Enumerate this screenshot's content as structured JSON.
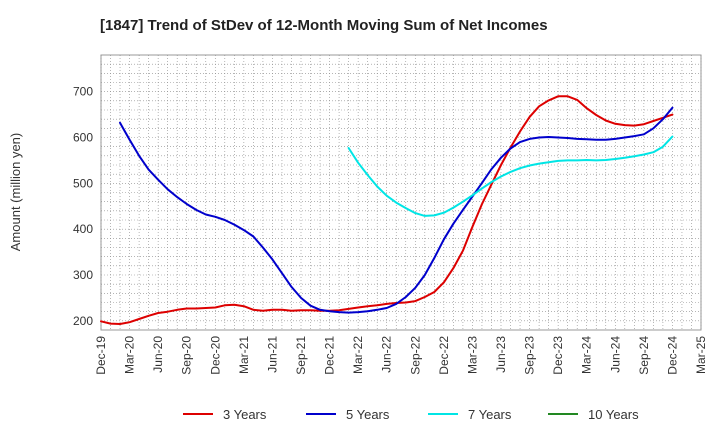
{
  "chart_data": {
    "type": "line",
    "title": "[1847]  Trend of StDev of 12-Month Moving Sum of Net Incomes",
    "xlabel": "",
    "ylabel": "Amount (million yen)",
    "x_ticks": [
      "Dec-19",
      "Mar-20",
      "Jun-20",
      "Sep-20",
      "Dec-20",
      "Mar-21",
      "Jun-21",
      "Sep-21",
      "Dec-21",
      "Mar-22",
      "Jun-22",
      "Sep-22",
      "Dec-22",
      "Mar-23",
      "Jun-23",
      "Sep-23",
      "Dec-23",
      "Mar-24",
      "Jun-24",
      "Sep-24",
      "Dec-24",
      "Mar-25"
    ],
    "y_ticks": [
      200,
      300,
      400,
      500,
      600,
      700
    ],
    "ylim": [
      180,
      780
    ],
    "xlim": [
      "2019-12",
      "2025-03"
    ],
    "grid": true,
    "legend_position": "bottom",
    "series": [
      {
        "name": "3 Years",
        "color": "#dd0000",
        "x": [
          "2019-12",
          "2020-01",
          "2020-02",
          "2020-03",
          "2020-04",
          "2020-05",
          "2020-06",
          "2020-07",
          "2020-08",
          "2020-09",
          "2020-10",
          "2020-11",
          "2020-12",
          "2021-01",
          "2021-02",
          "2021-03",
          "2021-04",
          "2021-05",
          "2021-06",
          "2021-07",
          "2021-08",
          "2021-09",
          "2021-10",
          "2021-11",
          "2021-12",
          "2022-01",
          "2022-02",
          "2022-03",
          "2022-04",
          "2022-05",
          "2022-06",
          "2022-07",
          "2022-08",
          "2022-09",
          "2022-10",
          "2022-11",
          "2022-12",
          "2023-01",
          "2023-02",
          "2023-03",
          "2023-04",
          "2023-05",
          "2023-06",
          "2023-07",
          "2023-08",
          "2023-09",
          "2023-10",
          "2023-11",
          "2023-12",
          "2024-01",
          "2024-02",
          "2024-03",
          "2024-04",
          "2024-05",
          "2024-06",
          "2024-07",
          "2024-08",
          "2024-09",
          "2024-10",
          "2024-11",
          "2024-12"
        ],
        "values": [
          199,
          194,
          193,
          197,
          204,
          211,
          217,
          220,
          224,
          227,
          227,
          228,
          229,
          234,
          235,
          232,
          224,
          222,
          224,
          224,
          222,
          223,
          223,
          222,
          222,
          223,
          226,
          229,
          232,
          234,
          237,
          239,
          240,
          243,
          252,
          263,
          284,
          315,
          353,
          405,
          455,
          498,
          540,
          578,
          613,
          645,
          668,
          681,
          690,
          690,
          682,
          664,
          649,
          637,
          630,
          627,
          626,
          629,
          636,
          643,
          650
        ]
      },
      {
        "name": "5 Years",
        "color": "#0000cc",
        "x": [
          "2020-02",
          "2020-03",
          "2020-04",
          "2020-05",
          "2020-06",
          "2020-07",
          "2020-08",
          "2020-09",
          "2020-10",
          "2020-11",
          "2020-12",
          "2021-01",
          "2021-02",
          "2021-03",
          "2021-04",
          "2021-05",
          "2021-06",
          "2021-07",
          "2021-08",
          "2021-09",
          "2021-10",
          "2021-11",
          "2021-12",
          "2022-01",
          "2022-02",
          "2022-03",
          "2022-04",
          "2022-05",
          "2022-06",
          "2022-07",
          "2022-08",
          "2022-09",
          "2022-10",
          "2022-11",
          "2022-12",
          "2023-01",
          "2023-02",
          "2023-03",
          "2023-04",
          "2023-05",
          "2023-06",
          "2023-07",
          "2023-08",
          "2023-09",
          "2023-10",
          "2023-11",
          "2023-12",
          "2024-01",
          "2024-02",
          "2024-03",
          "2024-04",
          "2024-05",
          "2024-06",
          "2024-07",
          "2024-08",
          "2024-09",
          "2024-10",
          "2024-11",
          "2024-12"
        ],
        "values": [
          632,
          595,
          560,
          530,
          508,
          487,
          470,
          455,
          442,
          432,
          427,
          420,
          410,
          398,
          384,
          360,
          334,
          304,
          274,
          250,
          233,
          224,
          221,
          219,
          218,
          219,
          221,
          224,
          228,
          237,
          252,
          272,
          300,
          337,
          378,
          412,
          442,
          471,
          501,
          531,
          556,
          576,
          590,
          597,
          600,
          601,
          600,
          599,
          597,
          596,
          595,
          595,
          597,
          600,
          603,
          607,
          620,
          640,
          665
        ]
      },
      {
        "name": "7 Years",
        "color": "#00e5e5",
        "x": [
          "2022-02",
          "2022-03",
          "2022-04",
          "2022-05",
          "2022-06",
          "2022-07",
          "2022-08",
          "2022-09",
          "2022-10",
          "2022-11",
          "2022-12",
          "2023-01",
          "2023-02",
          "2023-03",
          "2023-04",
          "2023-05",
          "2023-06",
          "2023-07",
          "2023-08",
          "2023-09",
          "2023-10",
          "2023-11",
          "2023-12",
          "2024-01",
          "2024-02",
          "2024-03",
          "2024-04",
          "2024-05",
          "2024-06",
          "2024-07",
          "2024-08",
          "2024-09",
          "2024-10",
          "2024-11",
          "2024-12"
        ],
        "values": [
          577,
          545,
          518,
          493,
          473,
          458,
          446,
          435,
          429,
          430,
          436,
          447,
          460,
          474,
          489,
          503,
          515,
          525,
          533,
          539,
          543,
          546,
          549,
          550,
          550,
          551,
          550,
          551,
          553,
          556,
          559,
          563,
          568,
          580,
          602
        ]
      },
      {
        "name": "10 Years",
        "color": "#228822",
        "x": [],
        "values": []
      }
    ]
  }
}
